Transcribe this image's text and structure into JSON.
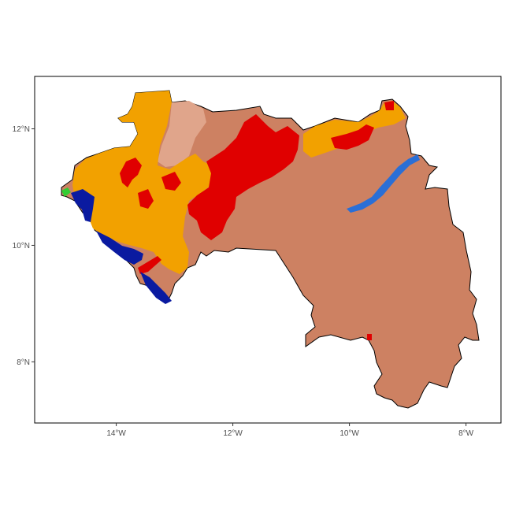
{
  "map": {
    "axes": {
      "x_ticks": [
        {
          "label": "14°W",
          "value": -14
        },
        {
          "label": "12°W",
          "value": -12
        },
        {
          "label": "10°W",
          "value": -10
        },
        {
          "label": "8°W",
          "value": -8
        }
      ],
      "y_ticks": [
        {
          "label": "12°N",
          "value": 12
        },
        {
          "label": "10°N",
          "value": 10
        },
        {
          "label": "8°N",
          "value": 8
        }
      ],
      "xlim": [
        -15.4,
        -7.4
      ],
      "ylim": [
        6.95,
        12.9
      ]
    },
    "colors": {
      "base_land": "#cd8162",
      "light_brown": "#e0a58b",
      "orange": "#f2a100",
      "red": "#e00000",
      "navy": "#0a1aa0",
      "blue": "#2a6fd6",
      "green": "#33cc33",
      "border": "#000000"
    },
    "legend": "none"
  }
}
